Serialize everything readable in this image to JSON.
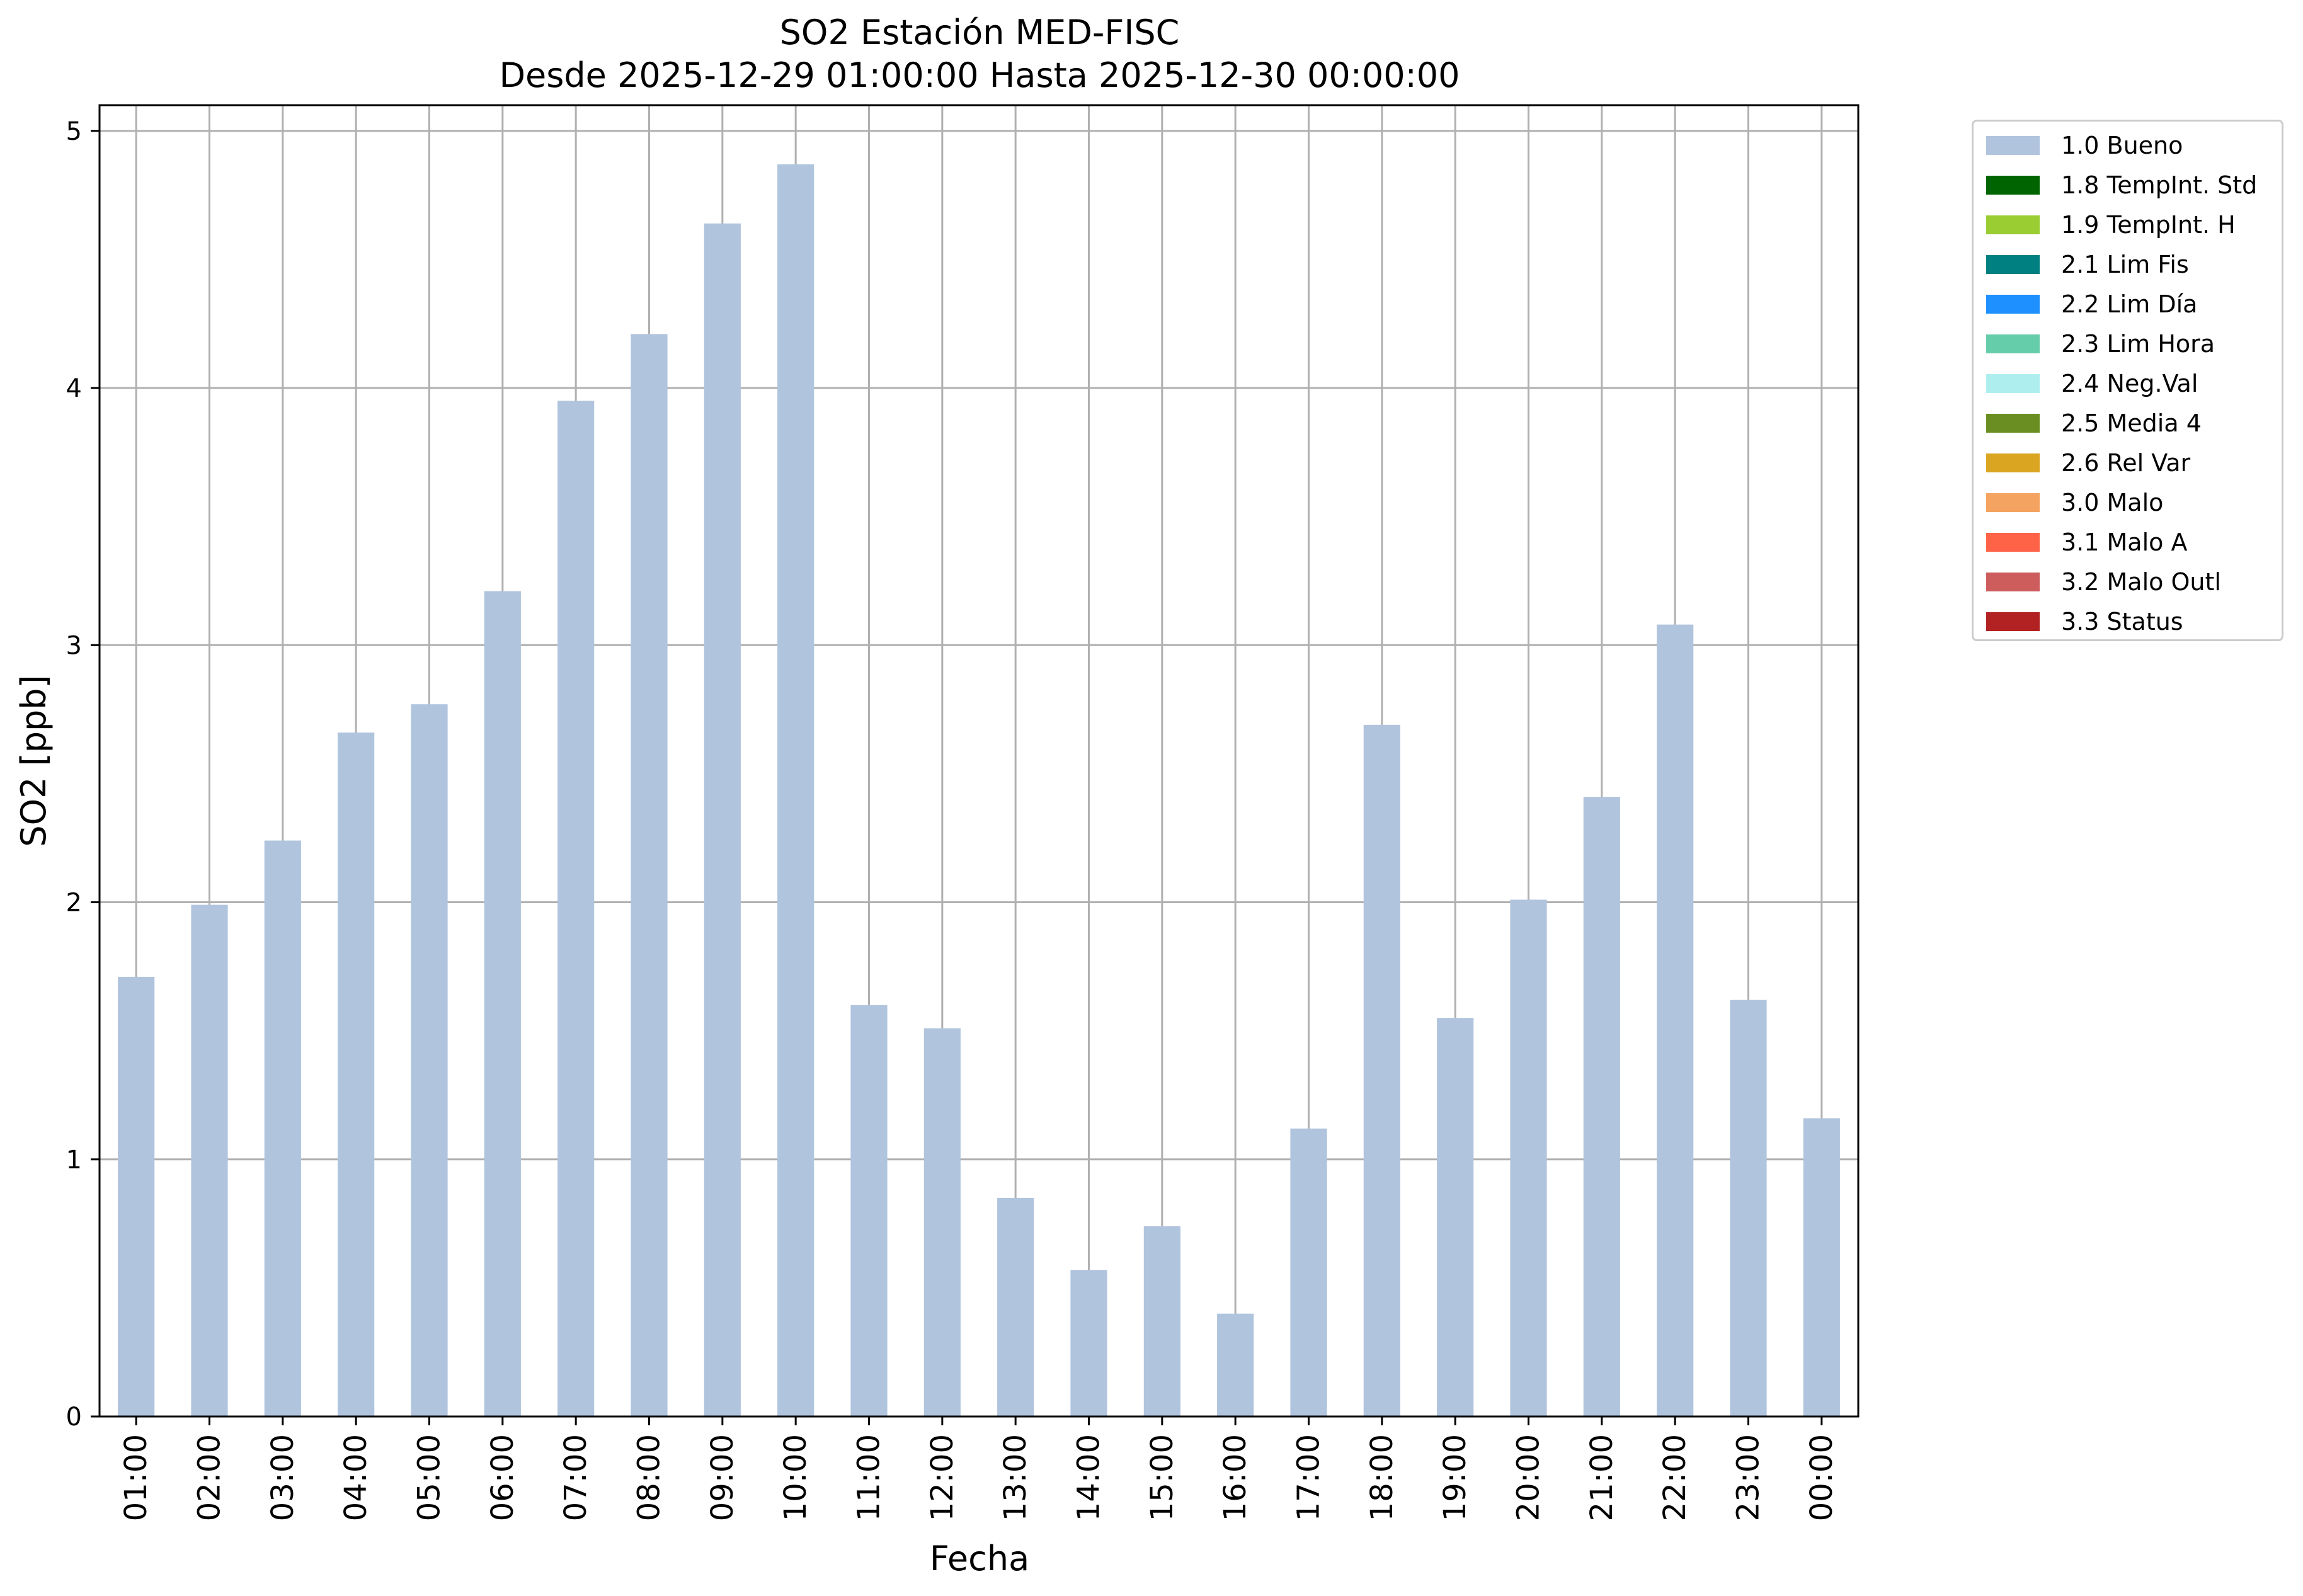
{
  "chart_data": {
    "type": "bar",
    "title": "SO2 Estación MED-FISC",
    "subtitle": "Desde 2025-12-29 01:00:00 Hasta 2025-12-30 00:00:00",
    "xlabel": "Fecha",
    "ylabel": "SO2 [ppb]",
    "ylim": [
      0,
      5.1
    ],
    "yticks": [
      0,
      1,
      2,
      3,
      4,
      5
    ],
    "grid": true,
    "legend_position": "outside-top-right",
    "categories": [
      "01:00",
      "02:00",
      "03:00",
      "04:00",
      "05:00",
      "06:00",
      "07:00",
      "08:00",
      "09:00",
      "10:00",
      "11:00",
      "12:00",
      "13:00",
      "14:00",
      "15:00",
      "16:00",
      "17:00",
      "18:00",
      "19:00",
      "20:00",
      "21:00",
      "22:00",
      "23:00",
      "00:00"
    ],
    "series": [
      {
        "name": "1.0 Bueno",
        "color": "#b0c4de",
        "values": [
          1.71,
          1.99,
          2.24,
          2.66,
          2.77,
          3.21,
          3.95,
          4.21,
          4.64,
          4.87,
          1.6,
          1.51,
          0.85,
          0.57,
          0.74,
          0.4,
          1.12,
          2.69,
          1.55,
          2.01,
          2.41,
          3.08,
          1.62,
          1.16
        ]
      }
    ],
    "legend": [
      {
        "label": "1.0 Bueno",
        "color": "#b0c4de"
      },
      {
        "label": "1.8 TempInt. Std",
        "color": "#006400"
      },
      {
        "label": "1.9 TempInt. H",
        "color": "#9acd32"
      },
      {
        "label": "2.1 Lim Fis",
        "color": "#008080"
      },
      {
        "label": "2.2 Lim Día",
        "color": "#1e90ff"
      },
      {
        "label": "2.3 Lim Hora",
        "color": "#66cdaa"
      },
      {
        "label": "2.4 Neg.Val",
        "color": "#afeeee"
      },
      {
        "label": "2.5 Media 4",
        "color": "#6b8e23"
      },
      {
        "label": "2.6 Rel Var",
        "color": "#daa520"
      },
      {
        "label": "3.0 Malo",
        "color": "#f4a460"
      },
      {
        "label": "3.1 Malo A",
        "color": "#ff6347"
      },
      {
        "label": "3.2 Malo Outl",
        "color": "#cd5c5c"
      },
      {
        "label": "3.3 Status",
        "color": "#b22222"
      }
    ]
  }
}
